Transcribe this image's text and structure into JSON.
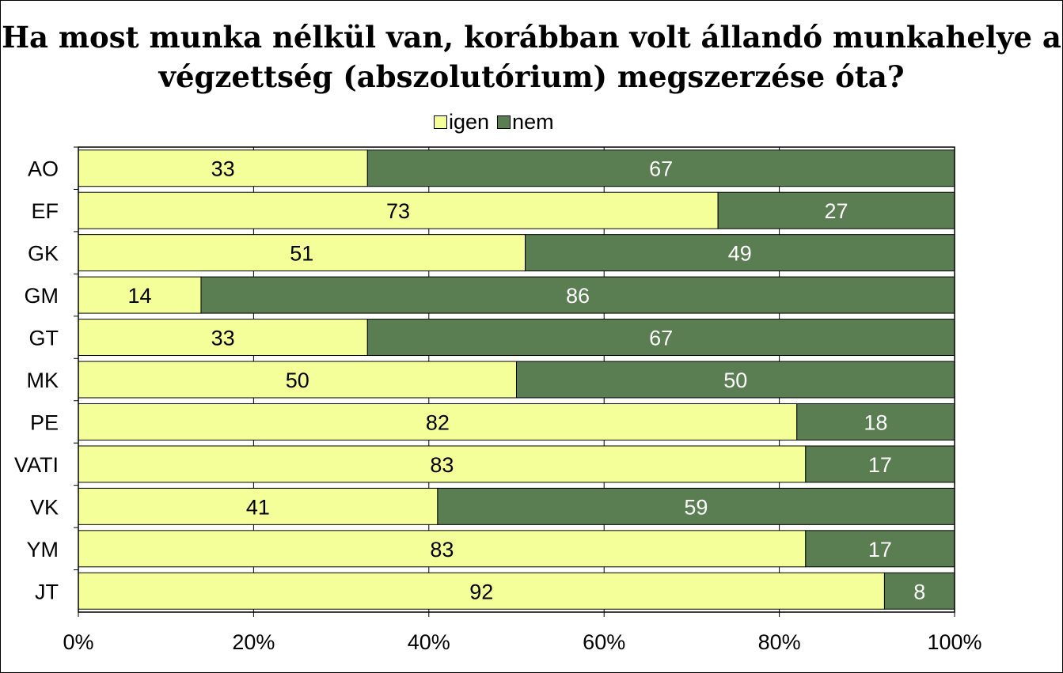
{
  "chart_data": {
    "type": "bar",
    "orientation": "horizontal",
    "stacked": "percent",
    "title": "Ha most munka nélkül van, korábban volt állandó munkahelye a végzettség (abszolutórium) megszerzése óta?",
    "title_lines": [
      "Ha most munka nélkül van, korábban volt állandó munkahelye a",
      "végzettség (abszolutórium) megszerzése óta?"
    ],
    "categories": [
      "AO",
      "EF",
      "GK",
      "GM",
      "GT",
      "MK",
      "PE",
      "VATI",
      "VK",
      "YM",
      "JT"
    ],
    "series": [
      {
        "name": "igen",
        "color": "#f5ff99",
        "label_color": "#000000",
        "values": [
          33,
          73,
          51,
          14,
          33,
          50,
          82,
          83,
          41,
          83,
          92
        ]
      },
      {
        "name": "nem",
        "color": "#5a7d52",
        "label_color": "#ffffff",
        "values": [
          67,
          27,
          49,
          86,
          67,
          50,
          18,
          17,
          59,
          17,
          8
        ]
      }
    ],
    "x_ticks": [
      "0%",
      "20%",
      "40%",
      "60%",
      "80%",
      "100%"
    ],
    "xlim": [
      0,
      100
    ],
    "grid": true,
    "legend_position": "top"
  }
}
